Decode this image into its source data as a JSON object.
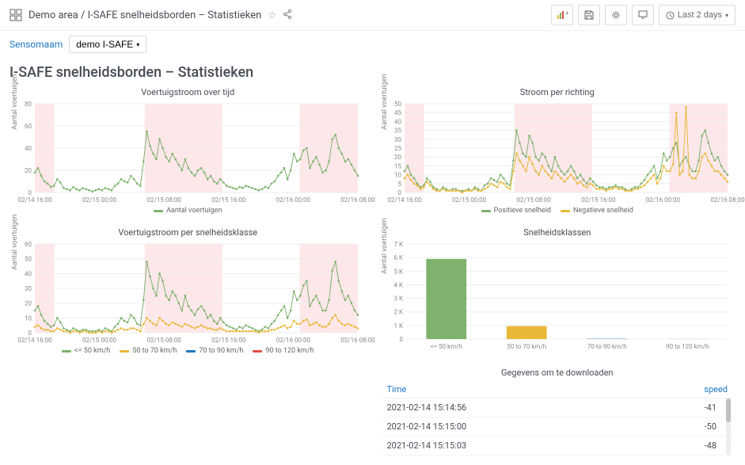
{
  "breadcrumb": "Demo area / I-SAFE snelheidsborden – Statistieken",
  "controls": {
    "sensor_label": "Sensomaam",
    "dropdown_label": "demo I-SAFE"
  },
  "time": {
    "label": "Last 2 days"
  },
  "page_title": "I-SAFE snelheidsborden – Statistieken",
  "colors": {
    "green": "#7eb26d",
    "yellow": "#eab839",
    "red": "#e24d42",
    "blue": "#1f78c1",
    "band": "#fde7e9",
    "grid": "#eeeeee",
    "axis": "#888888"
  },
  "x_ticks": [
    "02/14 16:00",
    "02/15 00:00",
    "02/15 08:00",
    "02/15 16:00",
    "02/16 00:00",
    "02/16 08:00"
  ],
  "panel1": {
    "title": "Voertuigstroom over tijd",
    "y_label": "Aantal voertuigen",
    "ylim": [
      0,
      80
    ],
    "ytick_step": 20,
    "legend": [
      {
        "label": "Aantal voertuigen",
        "color": "#7eb26d"
      }
    ],
    "bands": [
      [
        0,
        0.06
      ],
      [
        0.34,
        0.58
      ],
      [
        0.82,
        1.0
      ]
    ],
    "series": [
      {
        "color": "#7eb26d",
        "points": [
          18,
          22,
          15,
          10,
          8,
          5,
          6,
          12,
          9,
          4,
          3,
          2,
          5,
          3,
          2,
          4,
          3,
          2,
          1,
          2,
          3,
          2,
          4,
          3,
          2,
          6,
          8,
          12,
          10,
          9,
          15,
          12,
          8,
          6,
          28,
          55,
          42,
          35,
          30,
          48,
          40,
          32,
          28,
          35,
          30,
          25,
          20,
          30,
          22,
          18,
          15,
          20,
          22,
          18,
          12,
          15,
          10,
          8,
          12,
          9,
          6,
          5,
          4,
          3,
          5,
          4,
          6,
          5,
          4,
          3,
          2,
          3,
          5,
          4,
          8,
          10,
          15,
          18,
          22,
          12,
          20,
          35,
          28,
          30,
          38,
          40,
          22,
          28,
          32,
          25,
          18,
          20,
          28,
          48,
          52,
          40,
          35,
          28,
          30,
          25,
          20,
          15
        ]
      }
    ]
  },
  "panel2": {
    "title": "Stroom per richting",
    "y_label": "Aantal voertuigen",
    "ylim": [
      0,
      50
    ],
    "ytick_step": 5,
    "legend": [
      {
        "label": "Positieve snelheid",
        "color": "#7eb26d"
      },
      {
        "label": "Negatieve snelheid",
        "color": "#eab839"
      }
    ],
    "bands": [
      [
        0,
        0.06
      ],
      [
        0.34,
        0.58
      ],
      [
        0.82,
        1.0
      ]
    ],
    "series": [
      {
        "color": "#7eb26d",
        "points": [
          12,
          15,
          10,
          8,
          5,
          3,
          4,
          8,
          6,
          3,
          2,
          1,
          3,
          2,
          1,
          2,
          2,
          1,
          1,
          1,
          2,
          1,
          3,
          2,
          1,
          4,
          5,
          8,
          7,
          6,
          10,
          8,
          5,
          4,
          18,
          35,
          28,
          22,
          20,
          32,
          28,
          20,
          18,
          22,
          20,
          15,
          12,
          20,
          15,
          12,
          10,
          12,
          15,
          12,
          8,
          10,
          7,
          5,
          8,
          6,
          4,
          3,
          3,
          2,
          3,
          3,
          4,
          3,
          3,
          2,
          1,
          2,
          3,
          3,
          5,
          7,
          10,
          12,
          15,
          8,
          12,
          22,
          18,
          20,
          25,
          28,
          15,
          18,
          20,
          15,
          12,
          12,
          18,
          32,
          35,
          28,
          22,
          18,
          20,
          15,
          12,
          10
        ]
      },
      {
        "color": "#eab839",
        "points": [
          8,
          10,
          7,
          5,
          4,
          2,
          3,
          6,
          4,
          2,
          1,
          1,
          2,
          1,
          1,
          1,
          1,
          1,
          0,
          1,
          1,
          1,
          2,
          1,
          1,
          2,
          3,
          5,
          4,
          3,
          6,
          5,
          3,
          2,
          12,
          22,
          18,
          15,
          12,
          20,
          16,
          12,
          10,
          15,
          12,
          10,
          8,
          12,
          10,
          8,
          6,
          8,
          10,
          8,
          5,
          6,
          4,
          3,
          5,
          4,
          2,
          2,
          2,
          1,
          2,
          2,
          3,
          2,
          2,
          1,
          1,
          1,
          2,
          2,
          3,
          4,
          6,
          8,
          10,
          5,
          8,
          15,
          12,
          12,
          16,
          45,
          10,
          12,
          48,
          10,
          8,
          8,
          12,
          20,
          22,
          18,
          15,
          12,
          12,
          10,
          8,
          6
        ]
      }
    ]
  },
  "panel3": {
    "title": "Voertuigstroom per snelheidsklasse",
    "y_label": "Aantal voertuigen",
    "ylim": [
      0,
      60
    ],
    "ytick_step": 10,
    "legend": [
      {
        "label": "<= 50 km/h",
        "color": "#7eb26d"
      },
      {
        "label": "50 to 70 km/h",
        "color": "#eab839"
      },
      {
        "label": "70 to 90 km/h",
        "color": "#1f78c1"
      },
      {
        "label": "90 to 120 km/h",
        "color": "#e24d42"
      }
    ],
    "bands": [
      [
        0,
        0.06
      ],
      [
        0.34,
        0.58
      ],
      [
        0.82,
        1.0
      ]
    ],
    "series": [
      {
        "color": "#7eb26d",
        "points": [
          15,
          18,
          12,
          8,
          6,
          4,
          5,
          10,
          7,
          3,
          2,
          1,
          3,
          2,
          1,
          2,
          2,
          1,
          1,
          1,
          2,
          1,
          3,
          2,
          1,
          4,
          6,
          10,
          8,
          7,
          12,
          10,
          6,
          5,
          22,
          48,
          38,
          30,
          25,
          40,
          35,
          25,
          22,
          28,
          25,
          20,
          15,
          25,
          18,
          15,
          12,
          16,
          18,
          15,
          10,
          12,
          8,
          6,
          10,
          7,
          5,
          4,
          3,
          2,
          4,
          3,
          5,
          4,
          3,
          2,
          1,
          2,
          4,
          3,
          6,
          8,
          12,
          15,
          18,
          10,
          15,
          28,
          22,
          25,
          32,
          35,
          18,
          22,
          25,
          20,
          15,
          15,
          22,
          42,
          48,
          35,
          28,
          22,
          25,
          20,
          15,
          12
        ]
      },
      {
        "color": "#eab839",
        "points": [
          4,
          5,
          3,
          2,
          2,
          1,
          1,
          3,
          2,
          1,
          1,
          0,
          1,
          1,
          0,
          1,
          1,
          0,
          0,
          0,
          1,
          0,
          1,
          1,
          0,
          1,
          2,
          3,
          2,
          2,
          3,
          3,
          2,
          1,
          6,
          10,
          8,
          6,
          5,
          10,
          8,
          6,
          5,
          7,
          6,
          5,
          4,
          6,
          5,
          4,
          3,
          4,
          5,
          4,
          3,
          3,
          2,
          2,
          3,
          2,
          1,
          1,
          1,
          1,
          1,
          1,
          1,
          1,
          1,
          1,
          0,
          1,
          1,
          1,
          2,
          2,
          3,
          4,
          5,
          3,
          4,
          8,
          6,
          6,
          8,
          9,
          5,
          6,
          7,
          5,
          4,
          4,
          6,
          10,
          12,
          8,
          6,
          5,
          6,
          5,
          4,
          3
        ]
      }
    ]
  },
  "panel4": {
    "title": "Snelheidsklassen",
    "y_label": "Aantal voertuigen",
    "ylim": [
      0,
      7000
    ],
    "ytick_step": 1000,
    "categories": [
      "<= 50 km/h",
      "50 to 70 km/h",
      "70 to 90 km/h",
      "90 to 120 km/h"
    ],
    "values": [
      5900,
      950,
      20,
      5
    ],
    "bar_colors": [
      "#7eb26d",
      "#eab839",
      "#1f78c1",
      "#e24d42"
    ]
  },
  "download": {
    "title": "Gegevens om te downloaden",
    "col_time": "Time",
    "col_speed": "speed",
    "rows": [
      {
        "time": "2021-02-14 15:14:56",
        "speed": "-41"
      },
      {
        "time": "2021-02-14 15:15:00",
        "speed": "-50"
      },
      {
        "time": "2021-02-14 15:15:03",
        "speed": "-48"
      }
    ]
  }
}
